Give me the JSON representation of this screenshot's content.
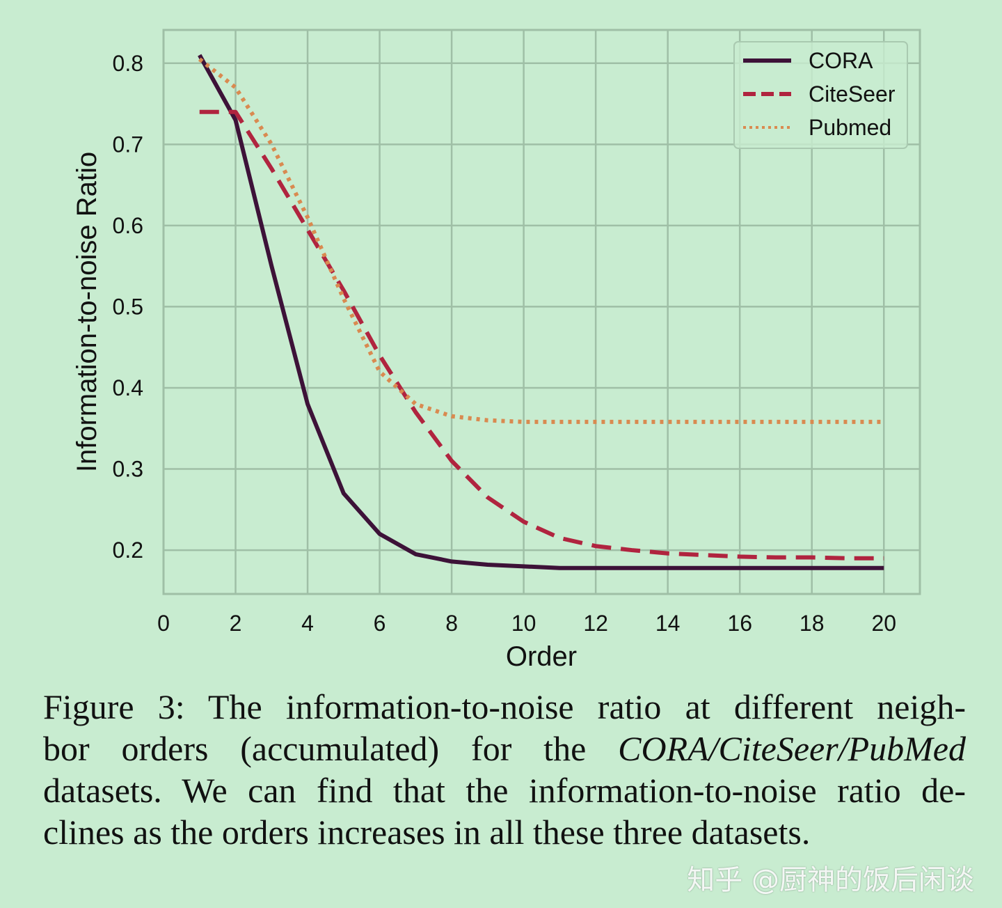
{
  "chart_data": {
    "type": "line",
    "xlabel": "Order",
    "ylabel": "Information-to-noise Ratio",
    "xlim": [
      0,
      21
    ],
    "ylim": [
      0.146,
      0.841
    ],
    "xticks": [
      "0",
      "2",
      "4",
      "6",
      "8",
      "10",
      "12",
      "14",
      "16",
      "18",
      "20"
    ],
    "yticks": [
      "0.2",
      "0.3",
      "0.4",
      "0.5",
      "0.6",
      "0.7",
      "0.8"
    ],
    "grid": true,
    "legend_position": "top-right",
    "x": [
      1,
      2,
      3,
      4,
      5,
      6,
      7,
      8,
      9,
      10,
      11,
      12,
      13,
      14,
      15,
      16,
      17,
      18,
      19,
      20
    ],
    "series": [
      {
        "name": "CORA",
        "style": "solid",
        "color": "#3d1238",
        "values": [
          0.81,
          0.73,
          0.55,
          0.38,
          0.27,
          0.22,
          0.195,
          0.186,
          0.182,
          0.18,
          0.178,
          0.178,
          0.178,
          0.178,
          0.178,
          0.178,
          0.178,
          0.178,
          0.178,
          0.178
        ]
      },
      {
        "name": "CiteSeer",
        "style": "dashed",
        "color": "#b0243f",
        "values": [
          0.74,
          0.74,
          0.67,
          0.595,
          0.52,
          0.44,
          0.37,
          0.31,
          0.265,
          0.235,
          0.215,
          0.205,
          0.2,
          0.196,
          0.194,
          0.192,
          0.191,
          0.191,
          0.19,
          0.19
        ]
      },
      {
        "name": "Pubmed",
        "style": "dotted",
        "color": "#d98a50",
        "values": [
          0.805,
          0.77,
          0.7,
          0.61,
          0.51,
          0.42,
          0.38,
          0.365,
          0.36,
          0.358,
          0.358,
          0.358,
          0.358,
          0.358,
          0.358,
          0.358,
          0.358,
          0.358,
          0.358,
          0.358
        ]
      }
    ]
  },
  "colors": {
    "background": "#c8ecd0",
    "grid": "#9fbfa6"
  },
  "caption": {
    "line1": "Figure 3: The information-to-noise ratio at different neigh-",
    "line2a": "bor orders (accumulated) for the ",
    "line2b": "CORA/CiteSeer/PubMed",
    "line3": "datasets. We can find that the information-to-noise ratio de-",
    "line4": "clines as the orders increases in all these three datasets."
  },
  "watermark": "知乎 @厨神的饭后闲谈"
}
